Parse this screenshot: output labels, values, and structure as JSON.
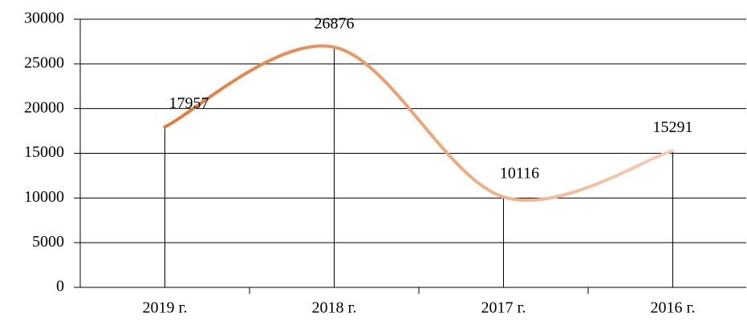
{
  "chart_data": {
    "type": "line",
    "categories": [
      "2019 г.",
      "2018 г.",
      "2017 г.",
      "2016 г."
    ],
    "values": [
      17957,
      26876,
      10116,
      15291
    ],
    "gradient": [
      "#e07b39",
      "#f7cdb5"
    ],
    "ylim": [
      0,
      30000
    ],
    "yticks": [
      0,
      5000,
      10000,
      15000,
      20000,
      25000,
      30000
    ],
    "grid": true,
    "smooth": true,
    "drop_lines": true
  }
}
